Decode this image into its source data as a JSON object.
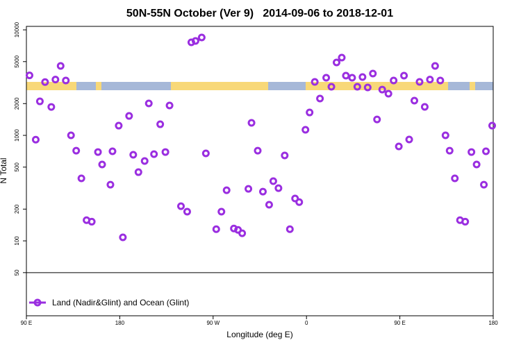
{
  "chart_data": {
    "type": "scatter",
    "title": "50N-55N October (Ver 9)   2014-09-06 to 2018-12-01",
    "x_label": "Longitude (deg E)",
    "y_label": "N Total",
    "log_y": true,
    "xlim": [
      90,
      540
    ],
    "ylim": [
      19.5,
      10790
    ],
    "xticks": [
      {
        "value": 90,
        "label": "90 E"
      },
      {
        "value": 180,
        "label": "180"
      },
      {
        "value": 270,
        "label": "90 W"
      },
      {
        "value": 360,
        "label": "0"
      },
      {
        "value": 450,
        "label": "90 E"
      },
      {
        "value": 540,
        "label": "180"
      }
    ],
    "yticks": [
      10000,
      5000,
      2000,
      1000,
      500,
      200,
      100,
      50
    ],
    "separator_line": 50,
    "series": [
      {
        "name": "Land (Nadir&Glint) and Ocean (Glint)",
        "color": "#9a2ee0",
        "x": [
          93,
          99,
          103,
          108,
          114,
          118,
          123,
          128,
          133,
          138,
          143,
          148,
          153,
          159,
          163,
          171,
          173,
          179,
          183,
          189,
          193,
          198,
          204,
          208,
          213,
          219,
          224,
          228,
          239,
          245,
          249,
          253,
          259,
          263,
          273,
          278,
          283,
          290,
          294,
          298,
          304,
          307,
          313,
          318,
          324,
          328,
          333,
          339,
          344,
          349,
          353,
          359,
          363,
          368,
          373,
          379,
          384,
          389,
          394,
          398,
          404,
          409,
          414,
          419,
          424,
          428,
          433,
          439,
          444,
          449,
          454,
          459,
          464,
          469,
          474,
          479,
          484,
          489,
          494,
          498,
          503,
          508,
          513,
          519,
          524,
          531,
          533,
          539
        ],
        "values": [
          3700,
          910,
          2100,
          3200,
          1860,
          3380,
          4550,
          3310,
          1000,
          716,
          391,
          157,
          152,
          695,
          530,
          341,
          706,
          1236,
          108,
          1528,
          655,
          448,
          571,
          2009,
          664,
          1274,
          695,
          1919,
          213,
          189,
          7620,
          7850,
          8470,
          675,
          129,
          189,
          302,
          131,
          127,
          118,
          311,
          1314,
          716,
          293,
          220,
          368,
          316,
          645,
          129,
          252,
          233,
          1129,
          1648,
          3210,
          2234,
          3516,
          2890,
          4910,
          5460,
          3681,
          3516,
          2890,
          3573,
          2845,
          3852,
          1416,
          2716,
          2483,
          3310,
          785,
          3681,
          914,
          2133,
          3210,
          1862,
          3380,
          4550,
          3310,
          1000,
          716,
          391,
          157,
          152,
          695,
          530,
          341,
          706,
          1236
        ]
      }
    ]
  }
}
